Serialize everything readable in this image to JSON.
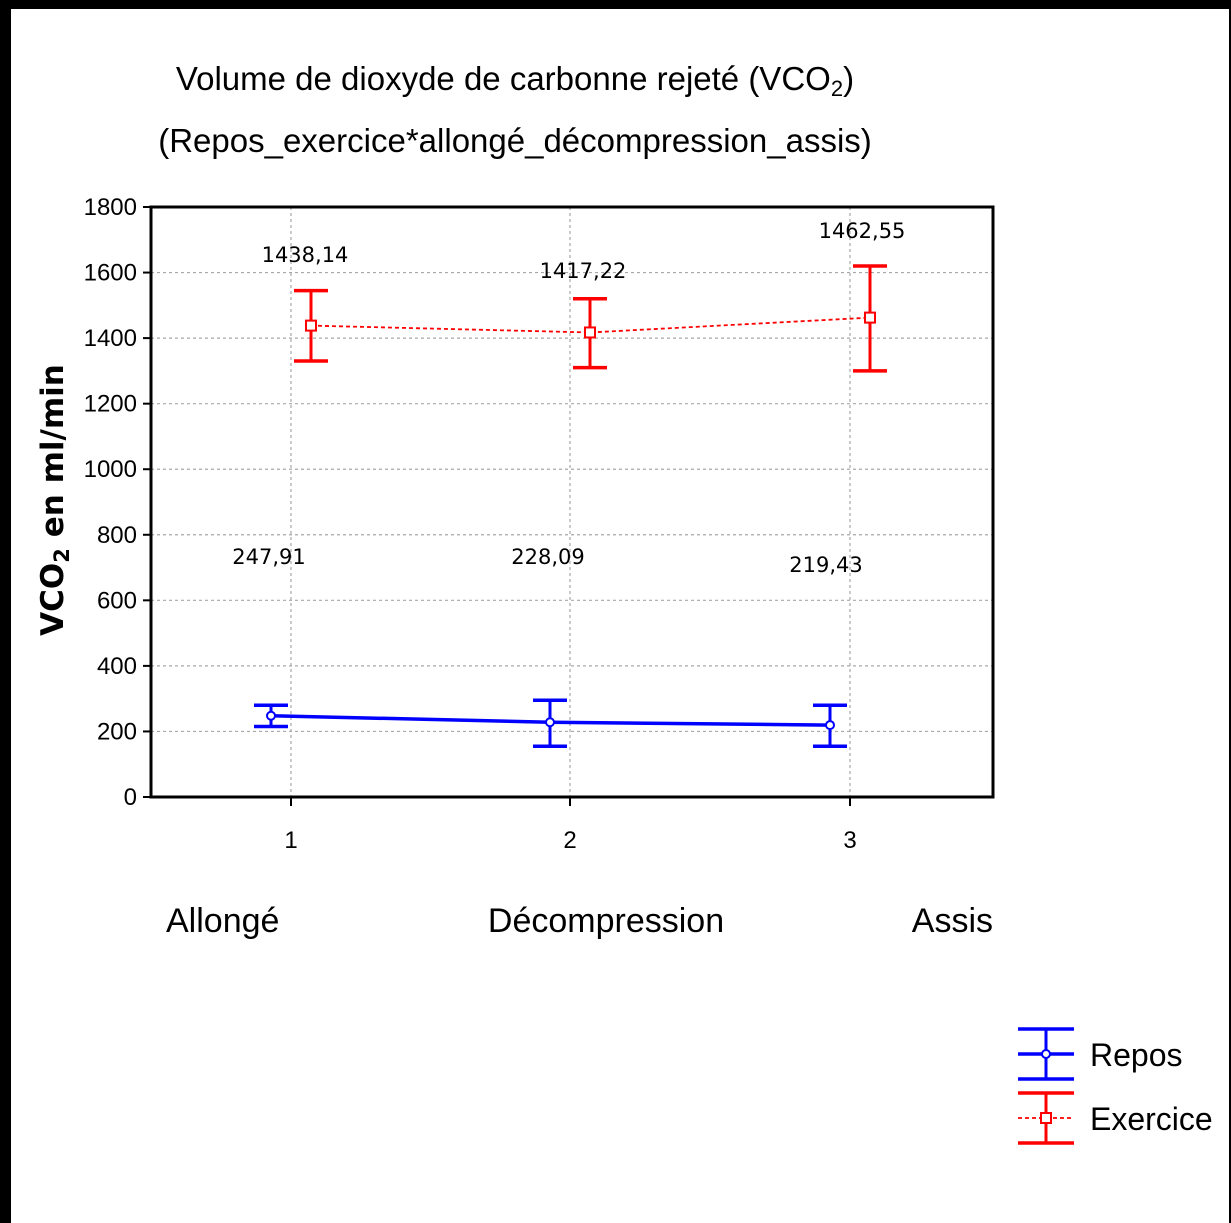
{
  "chart_data": {
    "type": "line",
    "title_line1_main": "Volume de dioxyde de carbonne rejeté (VCO",
    "title_line1_sub": "2",
    "title_line1_end": ")",
    "title_line2": "(Repos_exercice*allongé_décompression_assis)",
    "ylabel_main": "VCO",
    "ylabel_sub": "2",
    "ylabel_end": " en ml/min",
    "ylim": [
      0,
      1800
    ],
    "yticks": [
      "0",
      "200",
      "400",
      "600",
      "800",
      "1000",
      "1200",
      "1400",
      "1600",
      "1800"
    ],
    "x": [
      "1",
      "2",
      "3"
    ],
    "categories": [
      "Allongé",
      "Décompression",
      "Assis"
    ],
    "grid": true,
    "legend_position": "bottom-right",
    "series": [
      {
        "name": "Repos",
        "color": "#0000FF",
        "line_style": "solid",
        "marker": "circle",
        "values": [
          247.91,
          228.09,
          219.43
        ],
        "labels": [
          "247,91",
          "228,09",
          "219,43"
        ],
        "lower": [
          215,
          155,
          155
        ],
        "upper": [
          280,
          295,
          280
        ]
      },
      {
        "name": "Exercice",
        "color": "#FF0000",
        "line_style": "dotted",
        "marker": "square",
        "values": [
          1438.14,
          1417.22,
          1462.55
        ],
        "labels": [
          "1438,14",
          "1417,22",
          "1462,55"
        ],
        "lower": [
          1330,
          1310,
          1300
        ],
        "upper": [
          1545,
          1520,
          1620
        ]
      }
    ]
  }
}
